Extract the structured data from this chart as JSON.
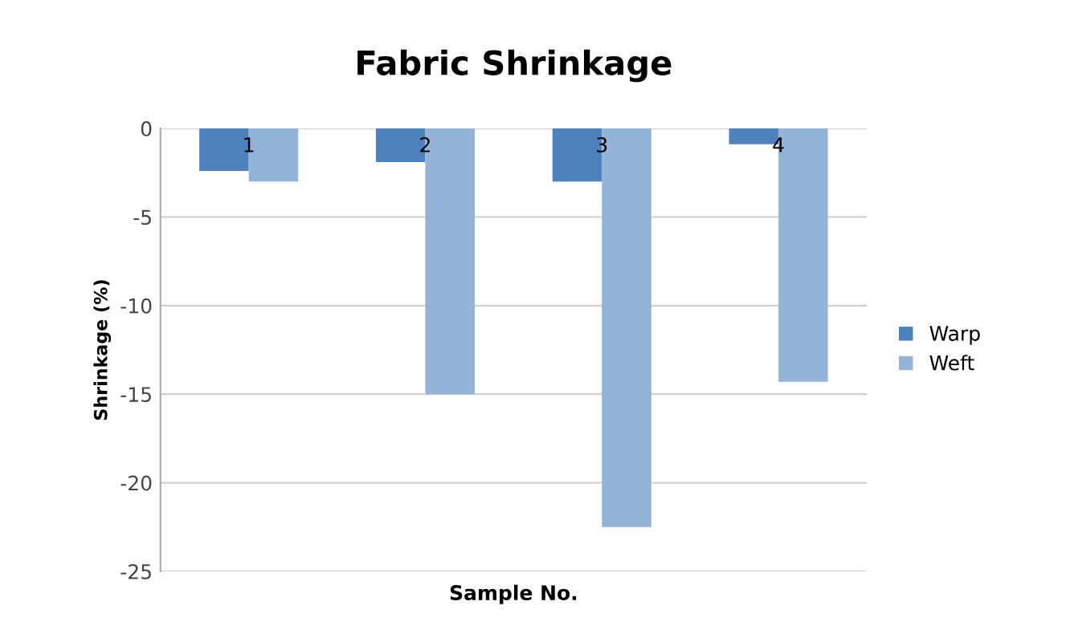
{
  "chart_data": {
    "type": "bar",
    "title": "Fabric Shrinkage",
    "xlabel": "Sample No.",
    "ylabel": "Shrinkage (%)",
    "categories": [
      "1",
      "2",
      "3",
      "4"
    ],
    "series": [
      {
        "name": "Warp",
        "color": "#4f81bd",
        "values": [
          -2.4,
          -1.9,
          -3,
          -0.9
        ]
      },
      {
        "name": "Weft",
        "color": "#95b3d7",
        "values": [
          -3,
          -15,
          -22.5,
          -14.3
        ]
      }
    ],
    "ylim": [
      -25,
      0
    ],
    "yticks": [
      -25,
      -20,
      -15,
      -10,
      -5,
      0
    ],
    "grid": "y",
    "legend": "right"
  }
}
